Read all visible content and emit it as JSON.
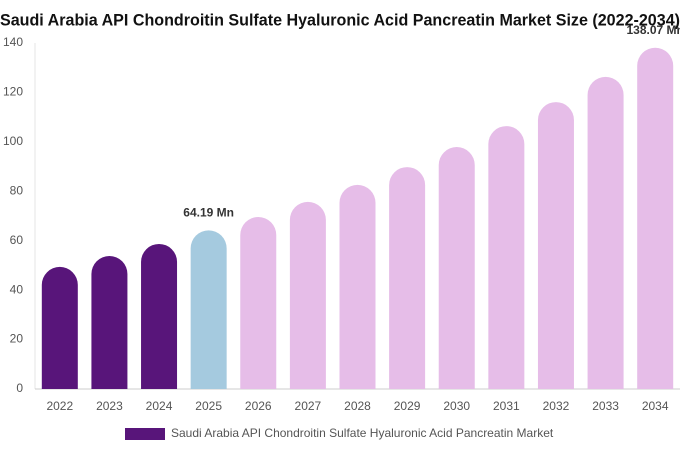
{
  "chart_data": {
    "type": "bar",
    "title": "Saudi Arabia API Chondroitin Sulfate Hyaluronic Acid Pancreatin Market Size (2022-2034)",
    "categories": [
      "2022",
      "2023",
      "2024",
      "2025",
      "2026",
      "2027",
      "2028",
      "2029",
      "2030",
      "2031",
      "2032",
      "2033",
      "2034"
    ],
    "series": [
      {
        "name": "Saudi Arabia API Chondroitin Sulfate Hyaluronic Acid Pancreatin Market",
        "color": "#58157a",
        "values": [
          49.4,
          53.8,
          58.7,
          64.19,
          69.6,
          75.7,
          82.6,
          89.8,
          97.9,
          106.4,
          116.1,
          126.3,
          138.07
        ],
        "value_labels": [
          null,
          null,
          null,
          "64.19 Mn",
          null,
          null,
          null,
          null,
          null,
          null,
          null,
          null,
          "138.07 Mn"
        ],
        "point_colors": [
          "#58157a",
          "#58157a",
          "#58157a",
          "#a5cadf",
          "#e6bde8",
          "#e6bde8",
          "#e6bde8",
          "#e6bde8",
          "#e6bde8",
          "#e6bde8",
          "#e6bde8",
          "#e6bde8",
          "#e6bde8"
        ]
      }
    ],
    "ylim": [
      0,
      140
    ],
    "yticks": [
      0,
      20,
      40,
      60,
      80,
      100,
      120,
      140
    ],
    "grid": false
  }
}
